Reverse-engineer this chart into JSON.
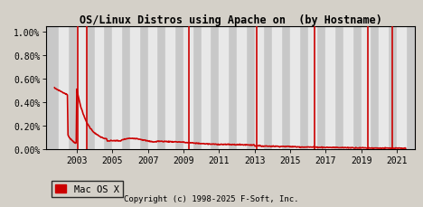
{
  "title": "OS/Linux Distros using Apache on  (by Hostname)",
  "copyright": "Copyright (c) 1998-2025 F-Soft, Inc.",
  "legend_label": "Mac OS X",
  "legend_color": "#cc0000",
  "line_color": "#cc0000",
  "bg_color": "#d4d0c8",
  "plot_bg_color": "#c8c8c8",
  "white_band_color": "#e8e8e8",
  "x_tick_labels": [
    "2003",
    "2005",
    "2007",
    "2009",
    "2011",
    "2013",
    "2015",
    "2017",
    "2019",
    "2021"
  ],
  "x_tick_positions": [
    2003,
    2005,
    2007,
    2009,
    2011,
    2013,
    2015,
    2017,
    2019,
    2021
  ],
  "y_tick_values": [
    0.0,
    0.2,
    0.4,
    0.6,
    0.8,
    1.0
  ],
  "ylim": [
    0.0,
    1.05
  ],
  "xlim_start": 2001.3,
  "xlim_end": 2022.0,
  "spike_years": [
    2003.05,
    2003.55,
    2009.3,
    2013.1,
    2016.4,
    2019.35,
    2020.75
  ]
}
